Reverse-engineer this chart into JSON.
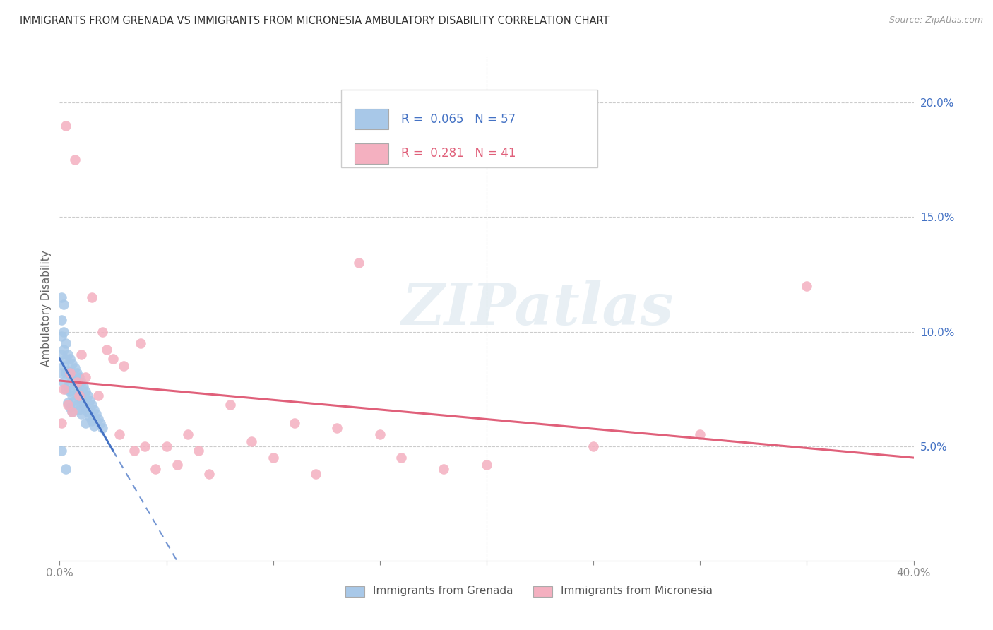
{
  "title": "IMMIGRANTS FROM GRENADA VS IMMIGRANTS FROM MICRONESIA AMBULATORY DISABILITY CORRELATION CHART",
  "source": "Source: ZipAtlas.com",
  "ylabel": "Ambulatory Disability",
  "R_grenada": 0.065,
  "N_grenada": 57,
  "R_micronesia": 0.281,
  "N_micronesia": 41,
  "color_grenada": "#a8c8e8",
  "color_micronesia": "#f4b0c0",
  "line_grenada": "#4472c4",
  "line_micronesia": "#e0607a",
  "watermark": "ZIPatlas",
  "legend_grenada": "Immigrants from Grenada",
  "legend_micronesia": "Immigrants from Micronesia",
  "xlim": [
    0.0,
    0.4
  ],
  "ylim": [
    0.0,
    0.22
  ],
  "grenada_x": [
    0.001,
    0.001,
    0.001,
    0.001,
    0.001,
    0.002,
    0.002,
    0.002,
    0.002,
    0.002,
    0.003,
    0.003,
    0.003,
    0.003,
    0.004,
    0.004,
    0.004,
    0.004,
    0.005,
    0.005,
    0.005,
    0.005,
    0.006,
    0.006,
    0.006,
    0.006,
    0.007,
    0.007,
    0.007,
    0.008,
    0.008,
    0.008,
    0.009,
    0.009,
    0.009,
    0.01,
    0.01,
    0.01,
    0.011,
    0.011,
    0.012,
    0.012,
    0.012,
    0.013,
    0.013,
    0.014,
    0.014,
    0.015,
    0.015,
    0.016,
    0.016,
    0.017,
    0.018,
    0.019,
    0.02,
    0.001,
    0.003
  ],
  "grenada_y": [
    0.115,
    0.105,
    0.098,
    0.09,
    0.082,
    0.112,
    0.1,
    0.092,
    0.085,
    0.078,
    0.095,
    0.088,
    0.082,
    0.075,
    0.09,
    0.083,
    0.076,
    0.069,
    0.088,
    0.081,
    0.074,
    0.067,
    0.086,
    0.079,
    0.072,
    0.065,
    0.084,
    0.077,
    0.07,
    0.082,
    0.075,
    0.068,
    0.08,
    0.073,
    0.066,
    0.078,
    0.071,
    0.064,
    0.076,
    0.069,
    0.074,
    0.067,
    0.06,
    0.072,
    0.065,
    0.07,
    0.063,
    0.068,
    0.061,
    0.066,
    0.059,
    0.064,
    0.062,
    0.06,
    0.058,
    0.048,
    0.04
  ],
  "micronesia_x": [
    0.001,
    0.002,
    0.003,
    0.004,
    0.005,
    0.006,
    0.007,
    0.008,
    0.009,
    0.01,
    0.012,
    0.015,
    0.018,
    0.02,
    0.022,
    0.025,
    0.028,
    0.03,
    0.035,
    0.038,
    0.04,
    0.045,
    0.05,
    0.055,
    0.06,
    0.065,
    0.07,
    0.08,
    0.09,
    0.1,
    0.11,
    0.12,
    0.13,
    0.14,
    0.15,
    0.16,
    0.18,
    0.2,
    0.25,
    0.3,
    0.35
  ],
  "micronesia_y": [
    0.06,
    0.075,
    0.19,
    0.068,
    0.082,
    0.065,
    0.175,
    0.078,
    0.072,
    0.09,
    0.08,
    0.115,
    0.072,
    0.1,
    0.092,
    0.088,
    0.055,
    0.085,
    0.048,
    0.095,
    0.05,
    0.04,
    0.05,
    0.042,
    0.055,
    0.048,
    0.038,
    0.068,
    0.052,
    0.045,
    0.06,
    0.038,
    0.058,
    0.13,
    0.055,
    0.045,
    0.04,
    0.042,
    0.05,
    0.055,
    0.12
  ]
}
